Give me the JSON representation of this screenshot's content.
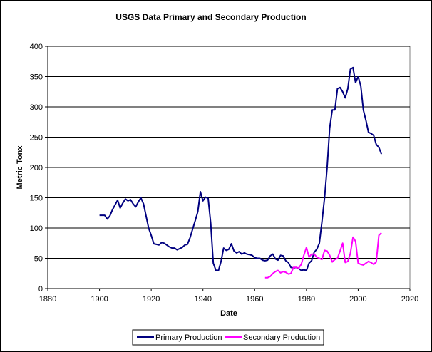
{
  "chart_data": {
    "type": "line",
    "title": "USGS Data Primary and Secondary Production",
    "xlabel": "Date",
    "ylabel": "Metric Tonx",
    "xlim": [
      1880,
      2020
    ],
    "ylim": [
      0,
      400
    ],
    "x_ticks": [
      1880,
      1900,
      1920,
      1940,
      1960,
      1980,
      2000,
      2020
    ],
    "y_ticks": [
      0,
      50,
      100,
      150,
      200,
      250,
      300,
      350,
      400
    ],
    "grid": "horizontal",
    "legend_position": "bottom",
    "series": [
      {
        "name": "Primary Production",
        "color": "#000080",
        "points": [
          [
            1900,
            121
          ],
          [
            1901,
            121
          ],
          [
            1902,
            121
          ],
          [
            1903,
            115
          ],
          [
            1904,
            120
          ],
          [
            1905,
            130
          ],
          [
            1906,
            138
          ],
          [
            1907,
            146
          ],
          [
            1908,
            133
          ],
          [
            1909,
            141
          ],
          [
            1910,
            148
          ],
          [
            1911,
            145
          ],
          [
            1912,
            147
          ],
          [
            1913,
            140
          ],
          [
            1914,
            135
          ],
          [
            1915,
            143
          ],
          [
            1916,
            150
          ],
          [
            1917,
            140
          ],
          [
            1918,
            120
          ],
          [
            1919,
            100
          ],
          [
            1920,
            88
          ],
          [
            1921,
            74
          ],
          [
            1922,
            73
          ],
          [
            1923,
            72
          ],
          [
            1924,
            76
          ],
          [
            1925,
            75
          ],
          [
            1926,
            72
          ],
          [
            1927,
            69
          ],
          [
            1928,
            67
          ],
          [
            1929,
            67
          ],
          [
            1930,
            64
          ],
          [
            1931,
            66
          ],
          [
            1932,
            68
          ],
          [
            1933,
            72
          ],
          [
            1934,
            73
          ],
          [
            1935,
            84
          ],
          [
            1936,
            98
          ],
          [
            1937,
            112
          ],
          [
            1938,
            127
          ],
          [
            1939,
            160
          ],
          [
            1940,
            145
          ],
          [
            1941,
            151
          ],
          [
            1942,
            149
          ],
          [
            1943,
            108
          ],
          [
            1944,
            42
          ],
          [
            1945,
            30
          ],
          [
            1946,
            30
          ],
          [
            1947,
            45
          ],
          [
            1948,
            67
          ],
          [
            1949,
            63
          ],
          [
            1950,
            65
          ],
          [
            1951,
            74
          ],
          [
            1952,
            62
          ],
          [
            1953,
            59
          ],
          [
            1954,
            61
          ],
          [
            1955,
            57
          ],
          [
            1956,
            59
          ],
          [
            1957,
            57
          ],
          [
            1958,
            56
          ],
          [
            1959,
            55
          ],
          [
            1960,
            51
          ],
          [
            1961,
            50
          ],
          [
            1962,
            50
          ],
          [
            1963,
            47
          ],
          [
            1964,
            46
          ],
          [
            1965,
            47
          ],
          [
            1966,
            54
          ],
          [
            1967,
            57
          ],
          [
            1968,
            49
          ],
          [
            1969,
            47
          ],
          [
            1970,
            55
          ],
          [
            1971,
            54
          ],
          [
            1972,
            46
          ],
          [
            1973,
            43
          ],
          [
            1974,
            35
          ],
          [
            1975,
            34
          ],
          [
            1976,
            35
          ],
          [
            1977,
            33
          ],
          [
            1978,
            30
          ],
          [
            1979,
            31
          ],
          [
            1980,
            30
          ],
          [
            1981,
            42
          ],
          [
            1982,
            46
          ],
          [
            1983,
            60
          ],
          [
            1984,
            65
          ],
          [
            1985,
            75
          ],
          [
            1986,
            110
          ],
          [
            1987,
            150
          ],
          [
            1988,
            200
          ],
          [
            1989,
            265
          ],
          [
            1990,
            295
          ],
          [
            1991,
            295
          ],
          [
            1992,
            330
          ],
          [
            1993,
            332
          ],
          [
            1994,
            325
          ],
          [
            1995,
            315
          ],
          [
            1996,
            330
          ],
          [
            1997,
            362
          ],
          [
            1998,
            365
          ],
          [
            1999,
            340
          ],
          [
            2000,
            350
          ],
          [
            2001,
            335
          ],
          [
            2002,
            295
          ],
          [
            2003,
            278
          ],
          [
            2004,
            258
          ],
          [
            2005,
            256
          ],
          [
            2006,
            253
          ],
          [
            2007,
            238
          ],
          [
            2008,
            233
          ],
          [
            2009,
            222
          ]
        ]
      },
      {
        "name": "Secondary Production",
        "color": "#FF00FF",
        "points": [
          [
            1964,
            18
          ],
          [
            1965,
            18
          ],
          [
            1966,
            20
          ],
          [
            1967,
            25
          ],
          [
            1968,
            28
          ],
          [
            1969,
            30
          ],
          [
            1970,
            26
          ],
          [
            1971,
            28
          ],
          [
            1972,
            27
          ],
          [
            1973,
            24
          ],
          [
            1974,
            25
          ],
          [
            1975,
            35
          ],
          [
            1976,
            35
          ],
          [
            1977,
            34
          ],
          [
            1978,
            40
          ],
          [
            1979,
            55
          ],
          [
            1980,
            68
          ],
          [
            1981,
            52
          ],
          [
            1982,
            57
          ],
          [
            1983,
            57
          ],
          [
            1984,
            52
          ],
          [
            1985,
            50
          ],
          [
            1986,
            48
          ],
          [
            1987,
            63
          ],
          [
            1988,
            62
          ],
          [
            1989,
            55
          ],
          [
            1990,
            44
          ],
          [
            1991,
            48
          ],
          [
            1992,
            50
          ],
          [
            1993,
            62
          ],
          [
            1994,
            75
          ],
          [
            1995,
            43
          ],
          [
            1996,
            45
          ],
          [
            1997,
            58
          ],
          [
            1998,
            85
          ],
          [
            1999,
            78
          ],
          [
            2000,
            42
          ],
          [
            2001,
            40
          ],
          [
            2002,
            39
          ],
          [
            2003,
            42
          ],
          [
            2004,
            45
          ],
          [
            2005,
            43
          ],
          [
            2006,
            40
          ],
          [
            2007,
            44
          ],
          [
            2008,
            88
          ],
          [
            2009,
            92
          ]
        ]
      }
    ]
  }
}
